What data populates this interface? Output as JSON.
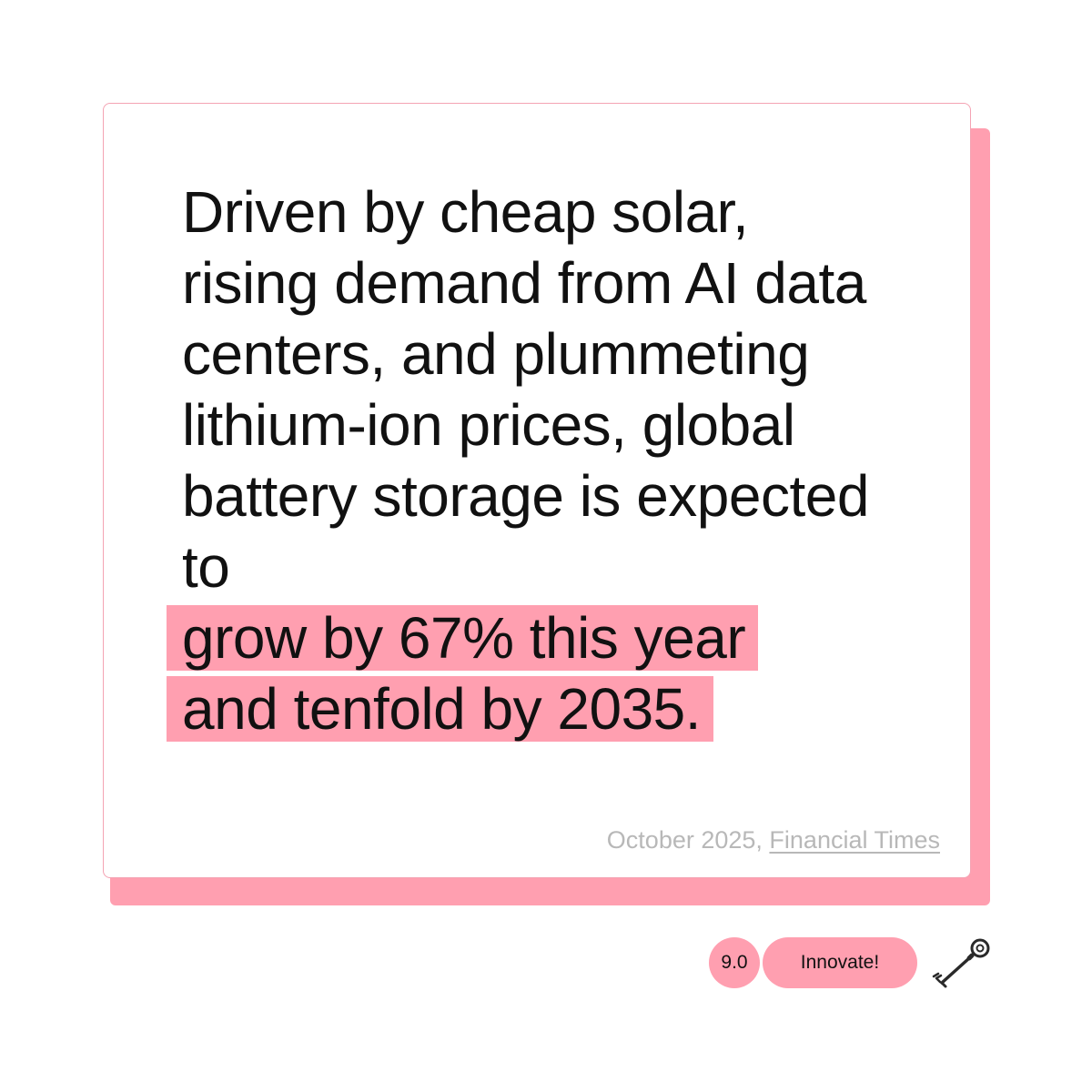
{
  "quote": {
    "text": "Driven by cheap solar, rising demand from AI data centers, and plummeting lithium-ion prices, global battery storage is expected to",
    "highlight_line_1": "grow by 67% this year",
    "highlight_line_2": "and tenfold by 2035."
  },
  "source": {
    "date": "October 2025, ",
    "publication": "Financial Times"
  },
  "footer": {
    "score": "9.0",
    "badge_label": "Innovate!",
    "icon": "key-icon"
  },
  "colors": {
    "accent": "#ff9fb0",
    "text": "#111111",
    "muted": "#b8b8b8"
  }
}
